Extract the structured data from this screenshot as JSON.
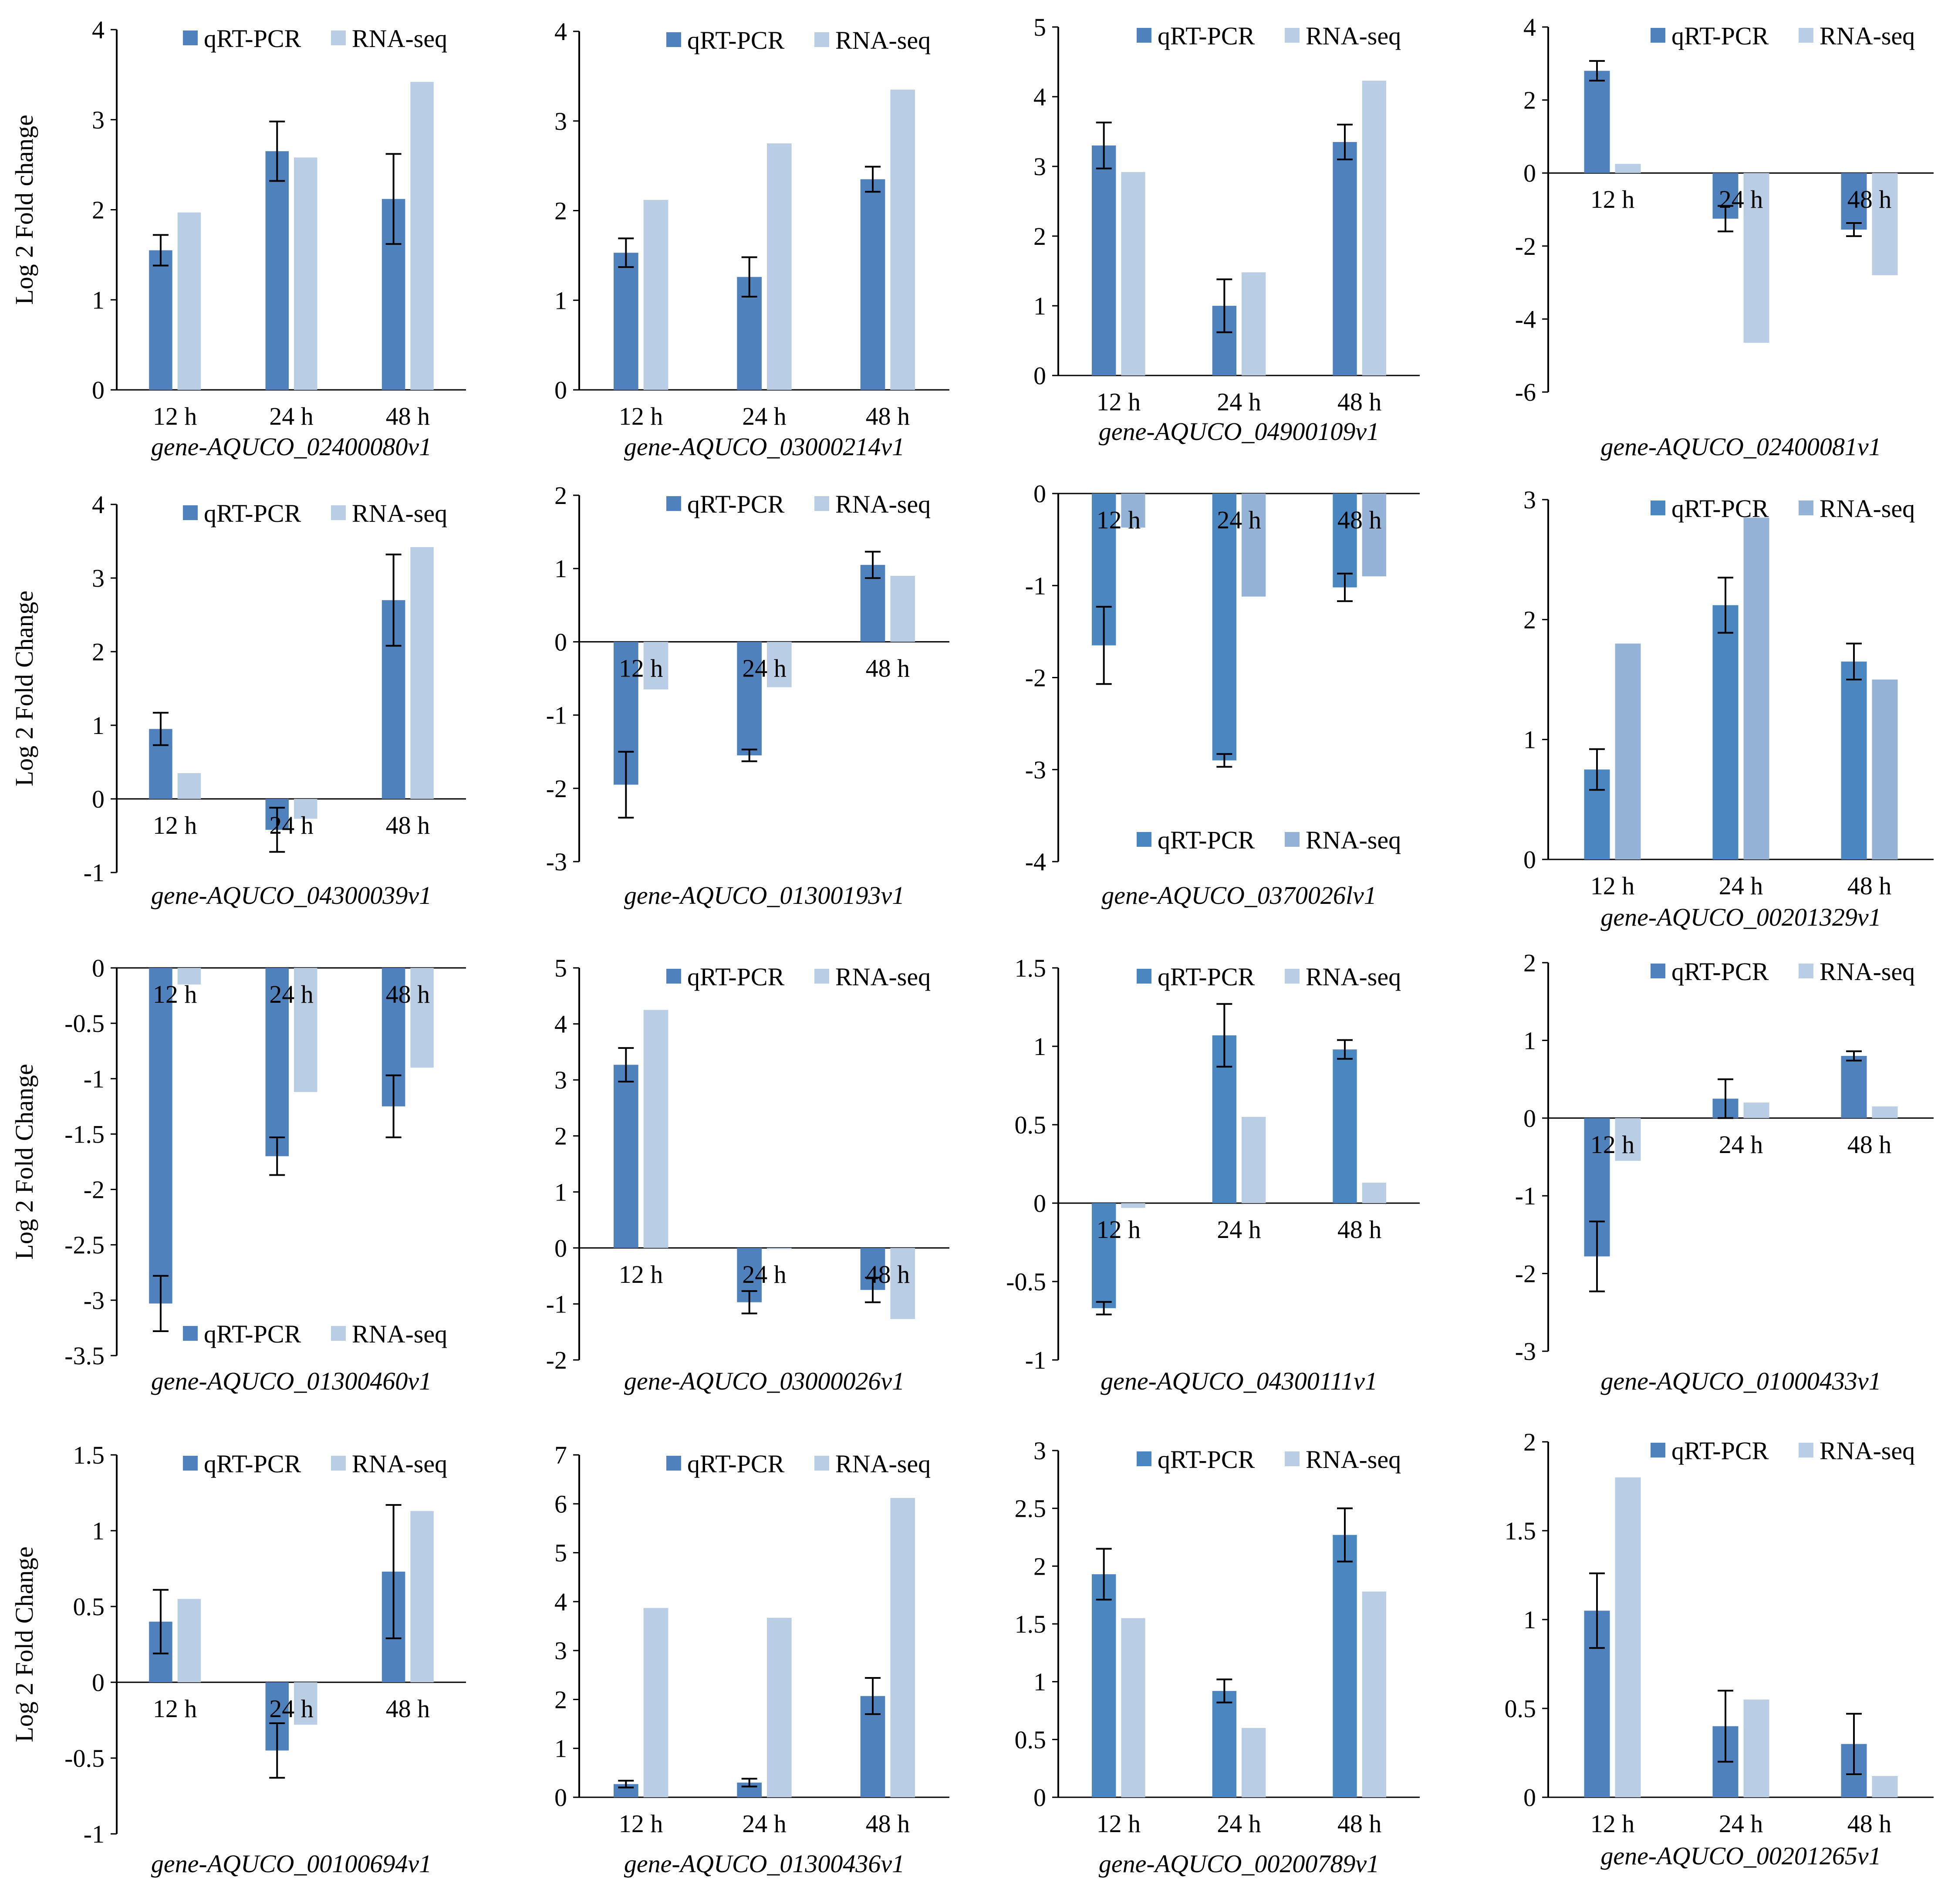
{
  "colors": {
    "qpcr": "#4f81bd",
    "qpcr_alt": "#4a87c0",
    "rnaseq": "#b9cde5",
    "rnaseq_alt": "#95b3d7",
    "axis": "#000000"
  },
  "legend": {
    "series_a": "qRT-PCR",
    "series_b": "RNA-seq"
  },
  "chart_data": [
    {
      "type": "bar",
      "title": "gene-AQUCO_02400080v1",
      "ylabel": "Log 2 Fold change",
      "categories": [
        "12 h",
        "24 h",
        "48 h"
      ],
      "ylim": [
        0,
        4
      ],
      "yticks": [
        0,
        1,
        2,
        3,
        4
      ],
      "series": [
        {
          "name": "qRT-PCR",
          "values": [
            1.55,
            2.65,
            2.12
          ],
          "errors": [
            0.17,
            0.33,
            0.5
          ]
        },
        {
          "name": "RNA-seq",
          "values": [
            1.97,
            2.58,
            3.42
          ]
        }
      ],
      "legend_position": "top-right"
    },
    {
      "type": "bar",
      "title": "gene-AQUCO_03000214v1",
      "ylabel": "",
      "categories": [
        "12 h",
        "24 h",
        "48 h"
      ],
      "ylim": [
        0,
        4
      ],
      "yticks": [
        0,
        1,
        2,
        3,
        4
      ],
      "series": [
        {
          "name": "qRT-PCR",
          "values": [
            1.53,
            1.26,
            2.35
          ],
          "errors": [
            0.16,
            0.22,
            0.14
          ]
        },
        {
          "name": "RNA-seq",
          "values": [
            2.12,
            2.75,
            3.35
          ]
        }
      ],
      "legend_position": "top-right"
    },
    {
      "type": "bar",
      "title": "gene-AQUCO_04900109v1",
      "ylabel": "",
      "categories": [
        "12 h",
        "24 h",
        "48 h"
      ],
      "ylim": [
        0,
        5
      ],
      "yticks": [
        0,
        1,
        2,
        3,
        4,
        5
      ],
      "series": [
        {
          "name": "qRT-PCR",
          "values": [
            3.3,
            1.0,
            3.35
          ],
          "errors": [
            0.33,
            0.38,
            0.25
          ]
        },
        {
          "name": "RNA-seq",
          "values": [
            2.92,
            1.48,
            4.23
          ]
        }
      ],
      "legend_position": "top-right"
    },
    {
      "type": "bar",
      "title": "gene-AQUCO_02400081v1",
      "ylabel": "",
      "categories": [
        "12 h",
        "24 h",
        "48 h"
      ],
      "ylim": [
        -6,
        4
      ],
      "yticks": [
        -6,
        -4,
        -2,
        0,
        2,
        4
      ],
      "series": [
        {
          "name": "qRT-PCR",
          "values": [
            2.8,
            -1.25,
            -1.55
          ],
          "errors": [
            0.27,
            0.35,
            0.18
          ]
        },
        {
          "name": "RNA-seq",
          "values": [
            0.25,
            -4.65,
            -2.8
          ]
        }
      ],
      "legend_position": "top-right"
    },
    {
      "type": "bar",
      "title": "gene-AQUCO_04300039v1",
      "ylabel": "Log 2 Fold Change",
      "categories": [
        "12 h",
        "24 h",
        "48 h"
      ],
      "ylim": [
        -1,
        4
      ],
      "yticks": [
        -1,
        0,
        1,
        2,
        3,
        4
      ],
      "series": [
        {
          "name": "qRT-PCR",
          "values": [
            0.95,
            -0.42,
            2.7
          ],
          "errors": [
            0.22,
            0.3,
            0.62
          ]
        },
        {
          "name": "RNA-seq",
          "values": [
            0.35,
            -0.27,
            3.42
          ]
        }
      ],
      "legend_position": "top-right"
    },
    {
      "type": "bar",
      "title": "gene-AQUCO_01300193v1",
      "ylabel": "",
      "categories": [
        "12 h",
        "24 h",
        "48 h"
      ],
      "ylim": [
        -3,
        2
      ],
      "yticks": [
        -3,
        -2,
        -1,
        0,
        1,
        2
      ],
      "series": [
        {
          "name": "qRT-PCR",
          "values": [
            -1.95,
            -1.55,
            1.05
          ],
          "errors": [
            0.45,
            0.08,
            0.18
          ]
        },
        {
          "name": "RNA-seq",
          "values": [
            -0.65,
            -0.62,
            0.9
          ]
        }
      ],
      "legend_position": "top-right"
    },
    {
      "type": "bar",
      "title": "gene-AQUCO_0370026lv1",
      "ylabel": "",
      "categories": [
        "12 h",
        "24 h",
        "48 h"
      ],
      "ylim": [
        -4,
        0
      ],
      "yticks": [
        -4,
        -3,
        -2,
        -1,
        0
      ],
      "series": [
        {
          "name": "qRT-PCR",
          "values": [
            -1.65,
            -2.9,
            -1.02
          ],
          "errors": [
            0.42,
            0.07,
            0.15
          ]
        },
        {
          "name": "RNA-seq",
          "values": [
            -0.37,
            -1.12,
            -0.9
          ]
        }
      ],
      "legend_position": "bottom-right"
    },
    {
      "type": "bar",
      "title": "gene-AQUCO_00201329v1",
      "ylabel": "",
      "categories": [
        "12 h",
        "24 h",
        "48 h"
      ],
      "ylim": [
        0,
        3
      ],
      "yticks": [
        0,
        1,
        2,
        3
      ],
      "series": [
        {
          "name": "qRT-PCR",
          "values": [
            0.75,
            2.12,
            1.65
          ],
          "errors": [
            0.17,
            0.23,
            0.15
          ]
        },
        {
          "name": "RNA-seq",
          "values": [
            1.8,
            2.85,
            1.5
          ]
        }
      ],
      "legend_position": "top-right"
    },
    {
      "type": "bar",
      "title": "gene-AQUCO_01300460v1",
      "ylabel": "Log 2 Fold Change",
      "categories": [
        "12 h",
        "24 h",
        "48 h"
      ],
      "ylim": [
        -3.5,
        0
      ],
      "yticks": [
        -3.5,
        -3,
        -2.5,
        -2,
        -1.5,
        -1,
        -0.5,
        0
      ],
      "series": [
        {
          "name": "qRT-PCR",
          "values": [
            -3.03,
            -1.7,
            -1.25
          ],
          "errors": [
            0.25,
            0.17,
            0.28
          ]
        },
        {
          "name": "RNA-seq",
          "values": [
            -0.15,
            -1.12,
            -0.9
          ]
        }
      ],
      "legend_position": "bottom-right"
    },
    {
      "type": "bar",
      "title": "gene-AQUCO_03000026v1",
      "ylabel": "",
      "categories": [
        "12 h",
        "24 h",
        "48 h"
      ],
      "ylim": [
        -2,
        5
      ],
      "yticks": [
        -2,
        -1,
        0,
        1,
        2,
        3,
        4,
        5
      ],
      "series": [
        {
          "name": "qRT-PCR",
          "values": [
            3.27,
            -0.97,
            -0.75
          ],
          "errors": [
            0.3,
            0.2,
            0.22
          ]
        },
        {
          "name": "RNA-seq",
          "values": [
            4.25,
            -0.02,
            -1.27
          ]
        }
      ],
      "legend_position": "top-right"
    },
    {
      "type": "bar",
      "title": "gene-AQUCO_04300111v1",
      "ylabel": "",
      "categories": [
        "12 h",
        "24 h",
        "48 h"
      ],
      "ylim": [
        -1,
        1.5
      ],
      "yticks": [
        -1,
        -0.5,
        0,
        0.5,
        1,
        1.5
      ],
      "series": [
        {
          "name": "qRT-PCR",
          "values": [
            -0.67,
            1.07,
            0.98
          ],
          "errors": [
            0.04,
            0.2,
            0.06
          ]
        },
        {
          "name": "RNA-seq",
          "values": [
            -0.03,
            0.55,
            0.13
          ]
        }
      ],
      "legend_position": "top-right"
    },
    {
      "type": "bar",
      "title": "gene-AQUCO_01000433v1",
      "ylabel": "",
      "categories": [
        "12 h",
        "24 h",
        "48 h"
      ],
      "ylim": [
        -3,
        2
      ],
      "yticks": [
        -3,
        -2,
        -1,
        0,
        1,
        2
      ],
      "series": [
        {
          "name": "qRT-PCR",
          "values": [
            -1.78,
            0.25,
            0.8
          ],
          "errors": [
            0.45,
            0.25,
            0.06
          ]
        },
        {
          "name": "RNA-seq",
          "values": [
            -0.55,
            0.2,
            0.15
          ]
        }
      ],
      "legend_position": "top-right"
    },
    {
      "type": "bar",
      "title": "gene-AQUCO_00100694v1",
      "ylabel": "Log 2 Fold Change",
      "categories": [
        "12 h",
        "24 h",
        "48 h"
      ],
      "ylim": [
        -1,
        1.5
      ],
      "yticks": [
        -1,
        -0.5,
        0,
        0.5,
        1,
        1.5
      ],
      "series": [
        {
          "name": "qRT-PCR",
          "values": [
            0.4,
            -0.45,
            0.73
          ],
          "errors": [
            0.21,
            0.18,
            0.44
          ]
        },
        {
          "name": "RNA-seq",
          "values": [
            0.55,
            -0.28,
            1.13
          ]
        }
      ],
      "legend_position": "top-right"
    },
    {
      "type": "bar",
      "title": "gene-AQUCO_01300436v1",
      "ylabel": "",
      "categories": [
        "12 h",
        "24 h",
        "48 h"
      ],
      "ylim": [
        0,
        7
      ],
      "yticks": [
        0,
        1,
        2,
        3,
        4,
        5,
        6,
        7
      ],
      "series": [
        {
          "name": "qRT-PCR",
          "values": [
            0.27,
            0.3,
            2.07
          ],
          "errors": [
            0.07,
            0.08,
            0.37
          ]
        },
        {
          "name": "RNA-seq",
          "values": [
            3.87,
            3.67,
            6.12
          ]
        }
      ],
      "legend_position": "top-right"
    },
    {
      "type": "bar",
      "title": "gene-AQUCO_00200789v1",
      "ylabel": "",
      "categories": [
        "12 h",
        "24 h",
        "48 h"
      ],
      "ylim": [
        0,
        3
      ],
      "yticks": [
        0,
        0.5,
        1,
        1.5,
        2,
        2.5,
        3
      ],
      "series": [
        {
          "name": "qRT-PCR",
          "values": [
            1.93,
            0.92,
            2.27
          ],
          "errors": [
            0.22,
            0.1,
            0.23
          ]
        },
        {
          "name": "RNA-seq",
          "values": [
            1.55,
            0.6,
            1.78
          ]
        }
      ],
      "legend_position": "top-right"
    },
    {
      "type": "bar",
      "title": "gene-AQUCO_00201265v1",
      "ylabel": "",
      "categories": [
        "12 h",
        "24 h",
        "48 h"
      ],
      "ylim": [
        0,
        2
      ],
      "yticks": [
        0,
        0.5,
        1,
        1.5,
        2
      ],
      "series": [
        {
          "name": "qRT-PCR",
          "values": [
            1.05,
            0.4,
            0.3
          ],
          "errors": [
            0.21,
            0.2,
            0.17
          ]
        },
        {
          "name": "RNA-seq",
          "values": [
            1.8,
            0.55,
            0.12
          ]
        }
      ],
      "legend_position": "top-right"
    }
  ]
}
